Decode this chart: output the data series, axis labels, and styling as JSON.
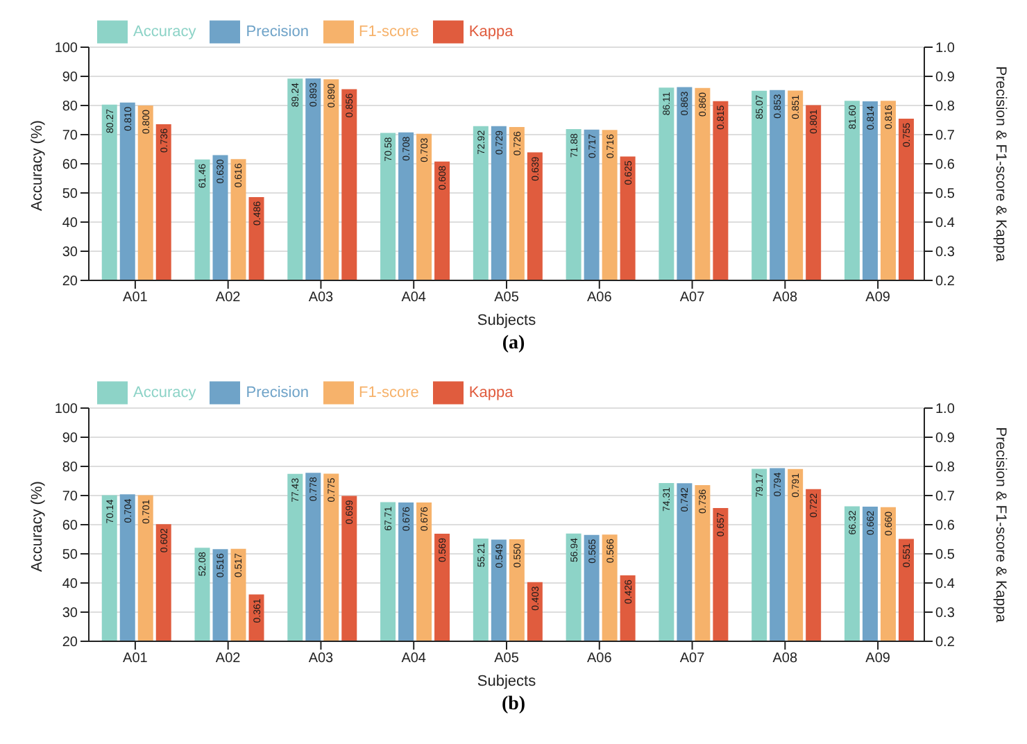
{
  "chart_data": [
    {
      "type": "bar",
      "categories": [
        "A01",
        "A02",
        "A03",
        "A04",
        "A05",
        "A06",
        "A07",
        "A08",
        "A09"
      ],
      "xlabel": "Subjects",
      "ylabel": "Accuracy (%)",
      "y2label": "Precision & F1-score & Kappa",
      "ylim": [
        20,
        100
      ],
      "yticks": [
        20,
        30,
        40,
        50,
        60,
        70,
        80,
        90,
        100
      ],
      "y2lim": [
        0.2,
        1
      ],
      "y2ticks": [
        0.2,
        0.3,
        0.4,
        0.5,
        0.6,
        0.7,
        0.8,
        0.9,
        {
          "value": 1,
          "label": "1.0"
        }
      ],
      "grid": "y",
      "legend": "top left",
      "annotations": [
        "(a)"
      ],
      "series": [
        {
          "name": "Accuracy",
          "color": "#8dd3c7",
          "values": [
            80.27,
            61.46,
            89.24,
            70.58,
            72.92,
            71.88,
            86.11,
            85.07,
            81.6
          ],
          "value_labels": [
            "80.27",
            "61.46",
            "89.24",
            "70.58",
            "72.92",
            "71.88",
            "86.11",
            "85.07",
            "81.60"
          ]
        },
        {
          "name": "Precision",
          "color": "#6fa3c8",
          "axis": "y2",
          "values": [
            0.81,
            0.63,
            0.893,
            0.708,
            0.729,
            0.717,
            0.863,
            0.853,
            0.814
          ],
          "value_labels": [
            "0.810",
            "0.630",
            "0.893",
            "0.708",
            "0.729",
            "0.717",
            "0.863",
            "0.853",
            "0.814"
          ]
        },
        {
          "name": "F1-score",
          "color": "#f6b26b",
          "axis": "y2",
          "values": [
            0.8,
            0.616,
            0.89,
            0.703,
            0.726,
            0.716,
            0.86,
            0.851,
            0.816
          ],
          "value_labels": [
            "0.800",
            "0.616",
            "0.890",
            "0.703",
            "0.726",
            "0.716",
            "0.860",
            "0.851",
            "0.816"
          ]
        },
        {
          "name": "Kappa",
          "color": "#e05c3e",
          "axis": "y2",
          "values": [
            0.736,
            0.486,
            0.856,
            0.608,
            0.639,
            0.625,
            0.815,
            0.801,
            0.755
          ],
          "value_labels": [
            "0.736",
            "0.486",
            "0.856",
            "0.608",
            "0.639",
            "0.625",
            "0.815",
            "0.801",
            "0.755"
          ]
        }
      ]
    },
    {
      "type": "bar",
      "categories": [
        "A01",
        "A02",
        "A03",
        "A04",
        "A05",
        "A06",
        "A07",
        "A08",
        "A09"
      ],
      "xlabel": "Subjects",
      "ylabel": "Accuracy (%)",
      "y2label": "Precision & F1-score & Kappa",
      "ylim": [
        20,
        100
      ],
      "yticks": [
        20,
        30,
        40,
        50,
        60,
        70,
        80,
        90,
        100
      ],
      "y2lim": [
        0.2,
        1
      ],
      "y2ticks": [
        0.2,
        0.3,
        0.4,
        0.5,
        0.6,
        0.7,
        0.8,
        0.9,
        {
          "value": 1,
          "label": "1.0"
        }
      ],
      "grid": "y",
      "legend": "top left",
      "annotations": [
        "(b)"
      ],
      "series": [
        {
          "name": "Accuracy",
          "color": "#8dd3c7",
          "values": [
            70.14,
            52.08,
            77.43,
            67.71,
            55.21,
            56.94,
            74.31,
            79.17,
            66.32
          ],
          "value_labels": [
            "70.14",
            "52.08",
            "77.43",
            "67.71",
            "55.21",
            "56.94",
            "74.31",
            "79.17",
            "66.32"
          ]
        },
        {
          "name": "Precision",
          "color": "#6fa3c8",
          "axis": "y2",
          "values": [
            0.704,
            0.516,
            0.778,
            0.676,
            0.549,
            0.565,
            0.742,
            0.794,
            0.662
          ],
          "value_labels": [
            "0.704",
            "0.516",
            "0.778",
            "0.676",
            "0.549",
            "0.565",
            "0.742",
            "0.794",
            "0.662"
          ]
        },
        {
          "name": "F1-score",
          "color": "#f6b26b",
          "axis": "y2",
          "values": [
            0.701,
            0.517,
            0.775,
            0.676,
            0.55,
            0.566,
            0.736,
            0.791,
            0.66
          ],
          "value_labels": [
            "0.701",
            "0.517",
            "0.775",
            "0.676",
            "0.550",
            "0.566",
            "0.736",
            "0.791",
            "0.660"
          ]
        },
        {
          "name": "Kappa",
          "color": "#e05c3e",
          "axis": "y2",
          "values": [
            0.602,
            0.361,
            0.699,
            0.569,
            0.403,
            0.426,
            0.657,
            0.722,
            0.551
          ],
          "value_labels": [
            "0.602",
            "0.361",
            "0.699",
            "0.569",
            "0.403",
            "0.426",
            "0.657",
            "0.722",
            "0.551"
          ]
        }
      ]
    }
  ]
}
